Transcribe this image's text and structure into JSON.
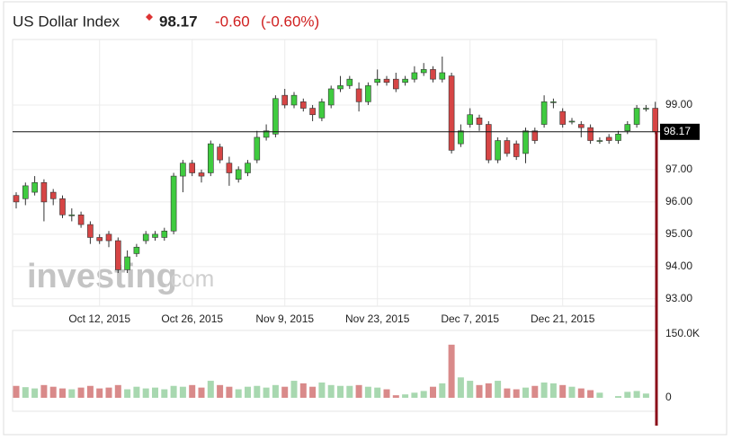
{
  "chart_data": {
    "type": "candlestick",
    "title": "US Dollar Index",
    "last_price": 98.17,
    "change": {
      "value": -0.6,
      "label": "-0.60"
    },
    "change_pct": {
      "value": -0.6,
      "label": "(-0.60%)"
    },
    "watermark": [
      "investing",
      ".com"
    ],
    "categories": [
      null,
      null,
      null,
      null,
      null,
      null,
      null,
      null,
      null,
      "Oct 12, 2015",
      null,
      null,
      null,
      null,
      null,
      null,
      null,
      null,
      null,
      "Oct 26, 2015",
      null,
      null,
      null,
      null,
      null,
      null,
      null,
      null,
      null,
      "Nov 9, 2015",
      null,
      null,
      null,
      null,
      null,
      null,
      null,
      null,
      null,
      "Nov 23, 2015",
      null,
      null,
      null,
      null,
      null,
      null,
      null,
      null,
      null,
      "Dec 7, 2015",
      null,
      null,
      null,
      null,
      null,
      null,
      null,
      null,
      null,
      "Dec 21, 2015",
      null,
      null,
      null,
      null,
      null,
      null,
      null,
      null,
      null,
      null
    ],
    "open": [
      96.2,
      96.1,
      96.3,
      96.6,
      96.3,
      96.1,
      95.6,
      95.6,
      95.3,
      94.9,
      95.0,
      94.8,
      93.9,
      94.4,
      94.8,
      94.9,
      94.9,
      95.1,
      96.8,
      97.2,
      96.9,
      96.9,
      97.7,
      97.2,
      96.7,
      96.9,
      97.3,
      98.0,
      98.1,
      99.3,
      99.0,
      99.1,
      98.9,
      98.6,
      99.0,
      99.5,
      99.6,
      99.5,
      99.1,
      99.7,
      99.8,
      99.8,
      99.7,
      99.8,
      100.0,
      100.1,
      99.8,
      99.9,
      97.8,
      98.4,
      98.6,
      98.4,
      97.3,
      97.9,
      97.8,
      97.5,
      98.2,
      98.4,
      99.1,
      98.8,
      98.5,
      98.4,
      98.3,
      97.9,
      98.0,
      97.9,
      98.2,
      98.4,
      98.9,
      98.9
    ],
    "high": [
      96.3,
      96.6,
      96.8,
      96.7,
      96.4,
      96.2,
      95.8,
      95.7,
      95.4,
      95.0,
      95.1,
      94.9,
      94.5,
      94.7,
      95.1,
      95.1,
      95.2,
      96.9,
      97.3,
      97.3,
      97.0,
      97.9,
      97.8,
      97.4,
      97.1,
      97.3,
      98.2,
      98.4,
      99.3,
      99.5,
      99.4,
      99.2,
      99.0,
      99.2,
      99.6,
      99.9,
      99.9,
      99.7,
      99.7,
      100.1,
      99.9,
      100.0,
      99.9,
      100.2,
      100.3,
      100.2,
      100.5,
      100.0,
      98.4,
      98.9,
      98.7,
      98.5,
      98.0,
      98.0,
      97.9,
      98.3,
      98.3,
      99.3,
      99.2,
      98.9,
      98.6,
      98.5,
      98.4,
      98.0,
      98.1,
      98.2,
      98.5,
      99.0,
      99.0,
      99.1
    ],
    "low": [
      95.8,
      95.9,
      96.2,
      95.4,
      95.9,
      95.5,
      95.4,
      95.2,
      94.7,
      94.7,
      94.6,
      93.8,
      93.8,
      94.3,
      94.7,
      94.8,
      94.8,
      95.0,
      96.3,
      96.8,
      96.6,
      96.8,
      97.2,
      96.5,
      96.6,
      96.8,
      97.2,
      97.9,
      98.0,
      98.9,
      98.9,
      98.8,
      98.5,
      98.5,
      98.9,
      99.4,
      99.5,
      98.8,
      99.0,
      99.6,
      99.6,
      99.4,
      99.6,
      99.7,
      99.9,
      99.7,
      99.7,
      97.5,
      97.7,
      98.3,
      98.2,
      97.2,
      97.2,
      97.4,
      97.3,
      97.2,
      97.8,
      98.3,
      98.9,
      98.3,
      98.4,
      98.0,
      97.8,
      97.8,
      97.8,
      97.8,
      98.1,
      98.3,
      98.8,
      98.1
    ],
    "close": [
      96.0,
      96.5,
      96.6,
      96.0,
      96.1,
      95.6,
      95.6,
      95.3,
      94.9,
      94.8,
      94.8,
      93.9,
      94.3,
      94.6,
      95.0,
      95.0,
      95.1,
      96.8,
      97.2,
      96.9,
      96.8,
      97.8,
      97.3,
      96.9,
      97.0,
      97.2,
      98.0,
      98.2,
      99.2,
      99.0,
      99.3,
      98.9,
      98.7,
      99.1,
      99.5,
      99.6,
      99.8,
      99.1,
      99.6,
      99.8,
      99.7,
      99.5,
      99.8,
      100.0,
      100.1,
      99.8,
      100.0,
      97.6,
      98.2,
      98.7,
      98.4,
      97.3,
      97.9,
      97.5,
      97.4,
      98.2,
      97.9,
      99.1,
      99.1,
      98.4,
      98.5,
      98.3,
      97.9,
      97.9,
      97.9,
      98.1,
      98.4,
      98.9,
      98.9,
      98.17
    ],
    "volume": [
      28000,
      25000,
      22000,
      30000,
      26000,
      22000,
      20000,
      24000,
      28000,
      22000,
      24000,
      30000,
      20000,
      26000,
      22000,
      24000,
      20000,
      28000,
      26000,
      30000,
      24000,
      40000,
      30000,
      26000,
      20000,
      26000,
      28000,
      24000,
      30000,
      26000,
      40000,
      34000,
      26000,
      36000,
      30000,
      28000,
      28000,
      30000,
      26000,
      24000,
      20000,
      6000,
      8000,
      12000,
      16000,
      26000,
      34000,
      125000,
      48000,
      40000,
      30000,
      34000,
      40000,
      22000,
      20000,
      24000,
      28000,
      36000,
      34000,
      30000,
      26000,
      22000,
      18000,
      12000,
      0,
      4000,
      14000,
      16000,
      10000,
      0
    ],
    "up_color": "#3fcb3f",
    "down_color": "#d64545",
    "up_volume_color": "#a8d8b0",
    "down_volume_color": "#d98a8a",
    "ylim": [
      92.8,
      101.0
    ],
    "yticks": [
      {
        "value": 93,
        "label": "93.00"
      },
      {
        "value": 94,
        "label": "94.00"
      },
      {
        "value": 95,
        "label": "95.00"
      },
      {
        "value": 96,
        "label": "96.00"
      },
      {
        "value": 97,
        "label": "97.00"
      },
      {
        "value": 99,
        "label": "99.00"
      }
    ],
    "vlim": [
      0,
      150000
    ],
    "vticks": [
      0,
      {
        "value": 150000,
        "label": "150.0K"
      }
    ],
    "grid": true
  }
}
